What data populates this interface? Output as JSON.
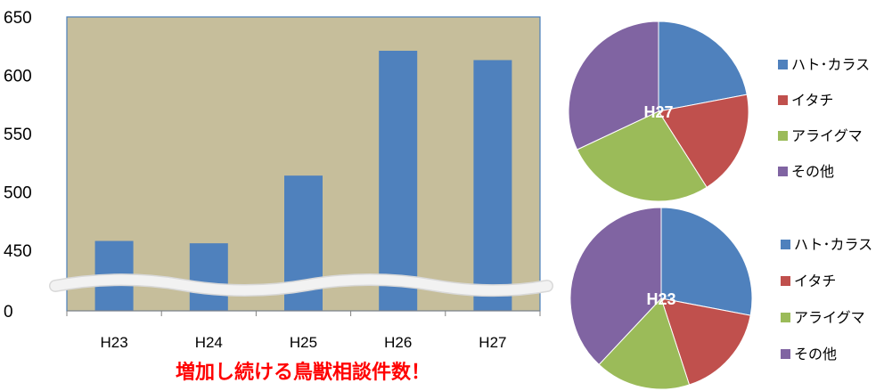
{
  "caption": "増加し続ける鳥獣相談件数！",
  "colors": {
    "plot_bg": "#C6BE9B",
    "bar": "#4F81BD",
    "axis": "#4A7EBB",
    "break": "#F2F2F2"
  },
  "chart_data": [
    {
      "type": "bar",
      "title": "",
      "xlabel": "",
      "ylabel": "",
      "categories": [
        "H23",
        "H24",
        "H25",
        "H26",
        "H27"
      ],
      "values": [
        458,
        456,
        514,
        621,
        613
      ],
      "ylim": [
        0,
        650
      ],
      "ytick_labels": [
        "0",
        "450",
        "500",
        "550",
        "600",
        "650"
      ],
      "axis_break": "broken y-axis between 0 and 450",
      "grid": false,
      "legend": "none"
    },
    {
      "type": "pie",
      "center_label": "H27",
      "legend": "right",
      "labels": [
        "ハト･カラス",
        "イタチ",
        "アライグマ",
        "その他"
      ],
      "values": [
        22,
        19,
        27,
        32
      ],
      "colors": [
        "#4F81BD",
        "#C0504D",
        "#9BBB59",
        "#8064A2"
      ]
    },
    {
      "type": "pie",
      "center_label": "H23",
      "legend": "right",
      "labels": [
        "ハト･カラス",
        "イタチ",
        "アライグマ",
        "その他"
      ],
      "values": [
        28,
        17,
        17,
        38
      ],
      "colors": [
        "#4F81BD",
        "#C0504D",
        "#9BBB59",
        "#8064A2"
      ]
    }
  ]
}
